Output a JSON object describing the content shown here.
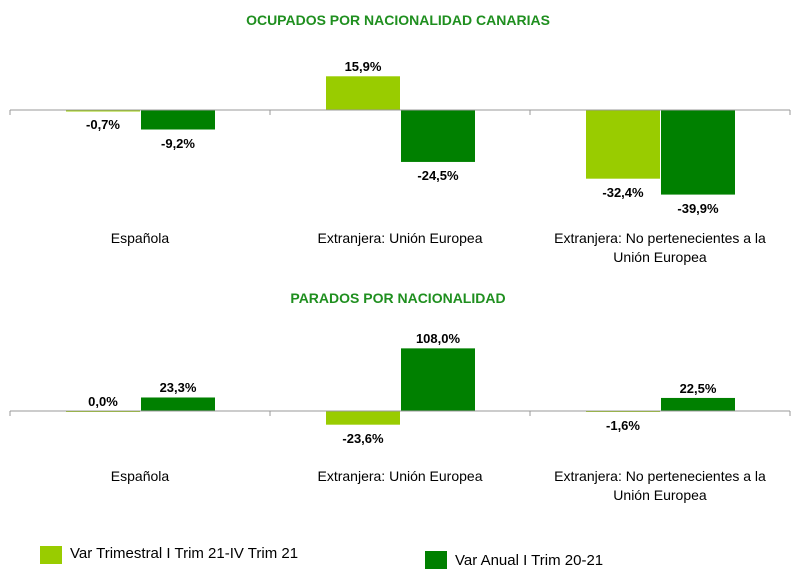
{
  "chart_data": [
    {
      "type": "bar",
      "title": "OCUPADOS POR NACIONALIDAD CANARIAS",
      "categories": [
        "Española",
        "Extranjera: Unión Europea",
        "Extranjera: No pertenecientes a la Unión Europea"
      ],
      "series": [
        {
          "color": "#99cc00",
          "values": [
            -0.7,
            15.9,
            -32.4
          ],
          "value_labels": [
            "-0,7%",
            "15,9%",
            "-32,4%"
          ]
        },
        {
          "color": "#008000",
          "values": [
            -9.2,
            -24.5,
            -39.9
          ],
          "value_labels": [
            "-9,2%",
            "-24,5%",
            "-39,9%"
          ]
        }
      ],
      "ylim": [
        -45,
        20
      ]
    },
    {
      "type": "bar",
      "title": "PARADOS POR NACIONALIDAD",
      "categories": [
        "Española",
        "Extranjera: Unión Europea",
        "Extranjera: No pertenecientes a la Unión Europea"
      ],
      "series": [
        {
          "color": "#99cc00",
          "values": [
            0.0,
            -23.6,
            -1.6
          ],
          "value_labels": [
            "0,0%",
            "-23,6%",
            "-1,6%"
          ]
        },
        {
          "color": "#008000",
          "values": [
            23.3,
            108.0,
            22.5
          ],
          "value_labels": [
            "23,3%",
            "108,0%",
            "22,5%"
          ]
        }
      ],
      "ylim": [
        -40,
        120
      ]
    }
  ],
  "legend": {
    "position": "bottom",
    "items": [
      {
        "name": "Var Trimestral I Trim 21-IV Trim 21",
        "color": "#99cc00"
      },
      {
        "name": "Var Anual I Trim 20-21",
        "color": "#008000"
      }
    ]
  }
}
